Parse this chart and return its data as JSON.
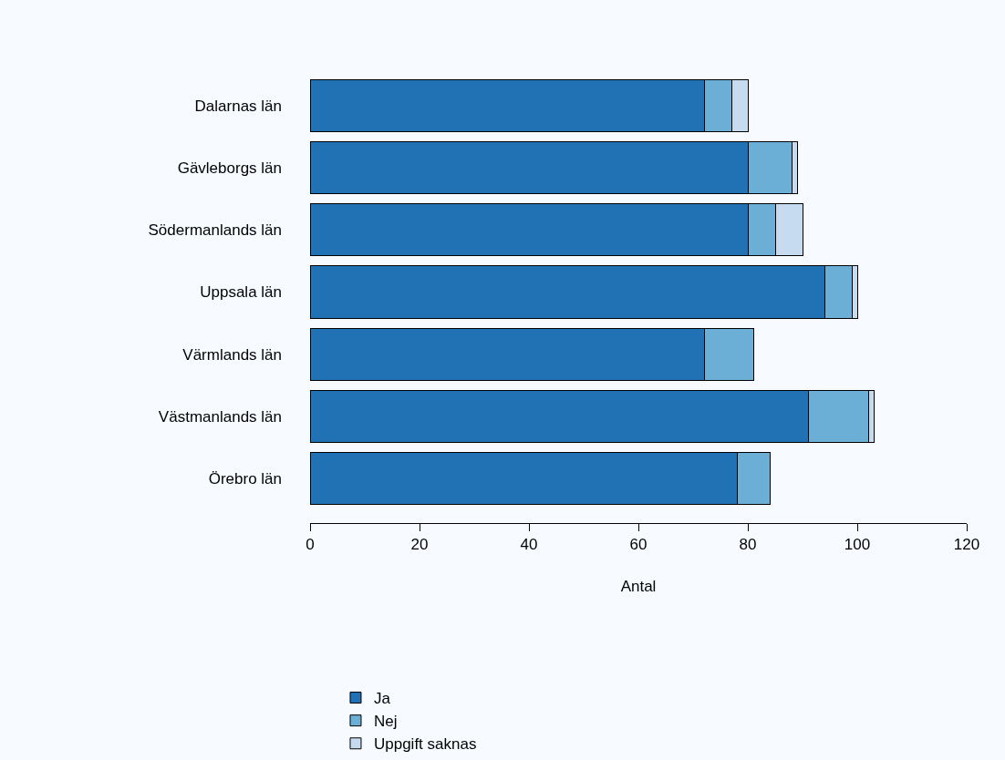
{
  "chart_data": {
    "type": "bar",
    "orientation": "horizontal",
    "stacked": true,
    "xlabel": "Antal",
    "categories": [
      "Dalarnas län",
      "Gävleborgs län",
      "Södermanlands län",
      "Uppsala län",
      "Värmlands län",
      "Västmanlands län",
      "Örebro län"
    ],
    "series": [
      {
        "name": "Ja",
        "color": "#2171b5",
        "values": [
          72,
          80,
          80,
          94,
          72,
          91,
          78
        ]
      },
      {
        "name": "Nej",
        "color": "#6baed6",
        "values": [
          5,
          8,
          5,
          5,
          9,
          11,
          6
        ]
      },
      {
        "name": "Uppgift saknas",
        "color": "#c6dbef",
        "values": [
          3,
          1,
          5,
          1,
          null,
          1,
          null
        ]
      }
    ],
    "xlim": [
      0,
      120
    ],
    "xticks": [
      0,
      20,
      40,
      60,
      80,
      100,
      120
    ],
    "grid": false,
    "legend": "bottom"
  }
}
